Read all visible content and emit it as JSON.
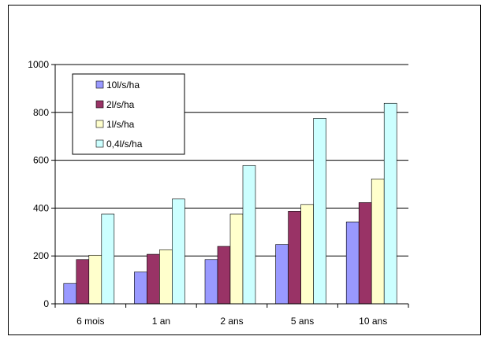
{
  "chart_data": {
    "type": "bar",
    "title": "",
    "xlabel": "",
    "ylabel": "",
    "categories": [
      "6 mois",
      "1 an",
      "2 ans",
      "5 ans",
      "10 ans"
    ],
    "ylim": [
      0,
      1000
    ],
    "yticks": [
      0,
      200,
      400,
      600,
      800,
      1000
    ],
    "grid": true,
    "legend_position": "top-left",
    "series": [
      {
        "name": "10l/s/ha",
        "color": "#9999ff",
        "values": [
          85,
          133,
          185,
          248,
          342
        ]
      },
      {
        "name": "2l/s/ha",
        "color": "#993366",
        "values": [
          185,
          207,
          240,
          387,
          423
        ]
      },
      {
        "name": "1l/s/ha",
        "color": "#ffffcc",
        "values": [
          203,
          226,
          375,
          415,
          522
        ]
      },
      {
        "name": "0,4l/s/ha",
        "color": "#ccffff",
        "values": [
          375,
          438,
          578,
          775,
          838
        ]
      }
    ]
  }
}
